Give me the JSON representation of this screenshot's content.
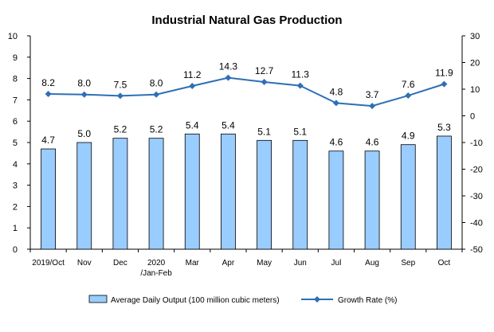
{
  "chart_data": {
    "type": "bar+line",
    "title": "Industrial Natural Gas Production",
    "categories": [
      "2019/Oct",
      "Nov",
      "Dec",
      "2020\n/Jan-Feb",
      "Mar",
      "Apr",
      "May",
      "Jun",
      "Jul",
      "Aug",
      "Sep",
      "Oct"
    ],
    "series": [
      {
        "name": "Average Daily Output (100 million cubic meters)",
        "type": "bar",
        "axis": "left",
        "values": [
          4.7,
          5.0,
          5.2,
          5.2,
          5.4,
          5.4,
          5.1,
          5.1,
          4.6,
          4.6,
          4.9,
          5.3
        ],
        "labels": [
          "4.7",
          "5.0",
          "5.2",
          "5.2",
          "5.4",
          "5.4",
          "5.1",
          "5.1",
          "4.6",
          "4.6",
          "4.9",
          "5.3"
        ]
      },
      {
        "name": "Growth Rate (%)",
        "type": "line",
        "axis": "right",
        "values": [
          8.2,
          8.0,
          7.5,
          8.0,
          11.2,
          14.3,
          12.7,
          11.3,
          4.8,
          3.7,
          7.6,
          11.9
        ],
        "labels": [
          "8.2",
          "8.0",
          "7.5",
          "8.0",
          "11.2",
          "14.3",
          "12.7",
          "11.3",
          "4.8",
          "3.7",
          "7.6",
          "11.9"
        ]
      }
    ],
    "y_left": {
      "min": 0,
      "max": 10,
      "ticks": [
        0,
        1,
        2,
        3,
        4,
        5,
        6,
        7,
        8,
        9,
        10
      ]
    },
    "y_right": {
      "min": -50,
      "max": 30,
      "ticks": [
        -50,
        -40,
        -30,
        -20,
        -10,
        0,
        10,
        20,
        30
      ]
    },
    "legend_position": "bottom",
    "grid": false,
    "colors": {
      "bar_fill": "#99ccff",
      "bar_stroke": "#000000",
      "line": "#2e6fb6",
      "text": "#000000"
    }
  }
}
